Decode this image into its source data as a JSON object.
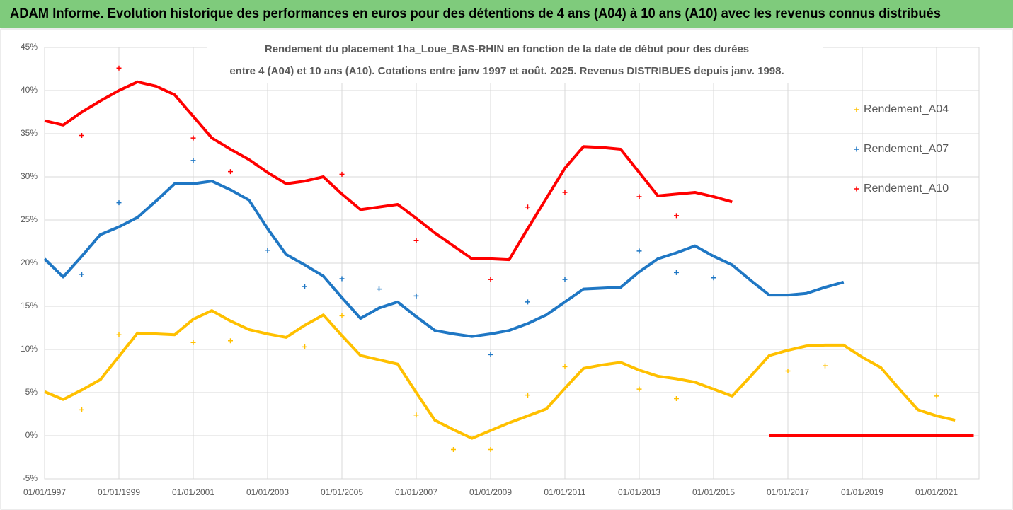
{
  "chart_data": {
    "type": "line",
    "title": "ADAM Informe. Evolution historique des performances en euros pour des détentions de 4 ans (A04) à 10 ans (A10) avec les revenus connus distribués",
    "subtitle": [
      "Rendement du placement 1ha_Loue_BAS-RHIN en fonction de la date de début pour des durées",
      "entre 4 (A04) et 10 ans (A10). Cotations entre janv 1997 et août. 2025. Revenus DISTRIBUES depuis janv. 1998."
    ],
    "x": [
      "01/01/1997",
      "01/07/1997",
      "01/01/1998",
      "01/07/1998",
      "01/01/1999",
      "01/07/1999",
      "01/01/2000",
      "01/07/2000",
      "01/01/2001",
      "01/07/2001",
      "01/01/2002",
      "01/07/2002",
      "01/01/2003",
      "01/07/2003",
      "01/01/2004",
      "01/07/2004",
      "01/01/2005",
      "01/07/2005",
      "01/01/2006",
      "01/07/2006",
      "01/01/2007",
      "01/07/2007",
      "01/01/2008",
      "01/07/2008",
      "01/01/2009",
      "01/07/2009",
      "01/01/2010",
      "01/07/2010",
      "01/01/2011",
      "01/07/2011",
      "01/01/2012",
      "01/07/2012",
      "01/01/2013",
      "01/07/2013",
      "01/01/2014",
      "01/07/2014",
      "01/01/2015",
      "01/07/2015",
      "01/01/2016",
      "01/07/2016",
      "01/01/2017",
      "01/07/2017",
      "01/01/2018",
      "01/07/2018",
      "01/01/2019",
      "01/07/2019",
      "01/01/2020",
      "01/07/2020",
      "01/01/2021",
      "01/07/2021",
      "01/01/2022"
    ],
    "xticks": [
      "01/01/1997",
      "01/01/1999",
      "01/01/2001",
      "01/01/2003",
      "01/01/2005",
      "01/01/2007",
      "01/01/2009",
      "01/01/2011",
      "01/01/2013",
      "01/01/2015",
      "01/01/2017",
      "01/01/2019",
      "01/01/2021"
    ],
    "ylim": [
      -5,
      45
    ],
    "yticks": [
      {
        "value": -5,
        "label": "-5%"
      },
      {
        "value": 0,
        "label": "0%"
      },
      {
        "value": 5,
        "label": "5%"
      },
      {
        "value": 10,
        "label": "10%"
      },
      {
        "value": 15,
        "label": "15%"
      },
      {
        "value": 20,
        "label": "20%"
      },
      {
        "value": 25,
        "label": "25%"
      },
      {
        "value": 30,
        "label": "30%"
      },
      {
        "value": 35,
        "label": "35%"
      },
      {
        "value": 40,
        "label": "40%"
      },
      {
        "value": 45,
        "label": "45%"
      }
    ],
    "grid": true,
    "legend": "right",
    "series": [
      {
        "name": "Rendement_A04",
        "color": "#ffc000",
        "values": [
          5.1,
          4.2,
          5.3,
          6.5,
          9.2,
          11.9,
          11.8,
          11.7,
          13.5,
          14.5,
          13.3,
          12.3,
          11.8,
          11.4,
          12.8,
          14,
          11.6,
          9.3,
          8.8,
          8.3,
          5,
          1.8,
          0.7,
          -0.3,
          0.6,
          1.5,
          2.3,
          3.1,
          5.5,
          7.8,
          8.2,
          8.5,
          7.6,
          6.9,
          6.6,
          6.2,
          5.4,
          4.6,
          6.9,
          9.3,
          9.9,
          10.4,
          10.5,
          10.5,
          9.1,
          7.9,
          5.4,
          3,
          2.3,
          1.8,
          null
        ],
        "outliers": {
          "x": [
            "01/01/1998",
            "01/01/1999",
            "01/01/2001",
            "01/01/2002",
            "01/01/2004",
            "01/01/2005",
            "01/01/2007",
            "01/01/2008",
            "01/01/2009",
            "01/01/2010",
            "01/01/2011",
            "01/01/2013",
            "01/01/2014",
            "01/01/2017",
            "01/01/2018",
            "01/01/2021"
          ],
          "values": [
            3,
            11.7,
            10.8,
            11,
            10.3,
            13.9,
            2.4,
            -1.6,
            -1.6,
            4.7,
            8,
            5.4,
            4.3,
            7.5,
            8.1,
            4.6
          ]
        }
      },
      {
        "name": "Rendement_A07",
        "color": "#1f77c4",
        "values": [
          20.5,
          18.4,
          20.8,
          23.3,
          24.2,
          25.3,
          27.2,
          29.2,
          29.2,
          29.5,
          28.5,
          27.3,
          24,
          21,
          19.8,
          18.5,
          16,
          13.6,
          14.8,
          15.5,
          13.8,
          12.2,
          11.8,
          11.5,
          11.8,
          12.2,
          13,
          14,
          15.5,
          17,
          17.1,
          17.2,
          19,
          20.5,
          21.2,
          22,
          20.8,
          19.8,
          18,
          16.3,
          16.3,
          16.5,
          17.2,
          17.8,
          null,
          null,
          null,
          null,
          null,
          null,
          null
        ],
        "outliers": {
          "x": [
            "01/01/1998",
            "01/01/1999",
            "01/01/2001",
            "01/01/2003",
            "01/01/2004",
            "01/01/2005",
            "01/01/2006",
            "01/01/2007",
            "01/01/2009",
            "01/01/2010",
            "01/01/2011",
            "01/01/2013",
            "01/01/2014",
            "01/01/2015"
          ],
          "values": [
            18.7,
            27,
            31.9,
            21.5,
            17.3,
            18.2,
            17,
            16.2,
            9.4,
            15.5,
            18.1,
            21.4,
            18.9,
            18.3
          ]
        }
      },
      {
        "name": "Rendement_A10",
        "color": "#ff0000",
        "values": [
          36.5,
          36,
          37.5,
          38.8,
          40,
          41,
          40.5,
          39.5,
          37,
          34.5,
          33.2,
          32,
          30.5,
          29.2,
          29.5,
          30,
          28,
          26.2,
          26.5,
          26.8,
          25.2,
          23.5,
          22,
          20.5,
          20.5,
          20.4,
          24,
          27.5,
          31,
          33.5,
          33.4,
          33.2,
          30.5,
          27.8,
          28,
          28.2,
          27.7,
          27.1,
          null,
          0,
          0,
          0,
          0,
          0,
          0,
          0,
          0,
          0,
          0,
          0,
          0
        ],
        "outliers": {
          "x": [
            "01/01/1998",
            "01/01/1999",
            "01/01/2001",
            "01/01/2002",
            "01/01/2005",
            "01/01/2007",
            "01/01/2009",
            "01/01/2010",
            "01/01/2011",
            "01/01/2013",
            "01/01/2014"
          ],
          "values": [
            34.8,
            42.6,
            34.5,
            30.6,
            30.3,
            22.6,
            18.1,
            26.5,
            28.2,
            27.7,
            25.5
          ]
        }
      }
    ]
  }
}
